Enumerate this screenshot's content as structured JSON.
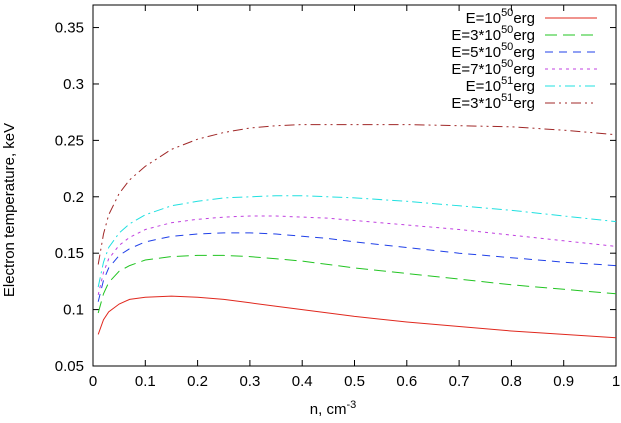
{
  "chart_data": {
    "type": "line",
    "title": "",
    "xlabel_base": "n, cm",
    "xlabel_exponent": "-3",
    "ylabel": "Electron temperature, keV",
    "xlim": [
      0,
      1
    ],
    "ylim": [
      0.05,
      0.37
    ],
    "x_ticks": [
      0,
      0.1,
      0.2,
      0.3,
      0.4,
      0.5,
      0.6,
      0.7,
      0.8,
      0.9,
      1
    ],
    "x_tick_labels": [
      "0",
      "0.1",
      "0.2",
      "0.3",
      "0.4",
      "0.5",
      "0.6",
      "0.7",
      "0.8",
      "0.9",
      "1"
    ],
    "y_ticks": [
      0.05,
      0.1,
      0.15,
      0.2,
      0.25,
      0.3,
      0.35
    ],
    "y_tick_labels": [
      "0.05",
      "0.1",
      "0.15",
      "0.2",
      "0.25",
      "0.3",
      "0.35"
    ],
    "grid": false,
    "legend_position": "top-right",
    "x": [
      0.01,
      0.02,
      0.03,
      0.05,
      0.07,
      0.1,
      0.15,
      0.2,
      0.25,
      0.3,
      0.35,
      0.4,
      0.45,
      0.5,
      0.6,
      0.7,
      0.8,
      0.9,
      1.0
    ],
    "series": [
      {
        "name_base": "E=10",
        "name_exponent": "50",
        "name_suffix": "erg",
        "color": "#e0281e",
        "dash": "solid",
        "values": [
          0.078,
          0.091,
          0.098,
          0.105,
          0.109,
          0.111,
          0.112,
          0.111,
          0.109,
          0.106,
          0.103,
          0.1,
          0.097,
          0.094,
          0.089,
          0.085,
          0.081,
          0.078,
          0.075
        ]
      },
      {
        "name_base": "E=3*10",
        "name_exponent": "50",
        "name_suffix": "erg",
        "color": "#22c422",
        "dash": "long-dash",
        "values": [
          0.097,
          0.114,
          0.124,
          0.134,
          0.139,
          0.144,
          0.147,
          0.148,
          0.148,
          0.147,
          0.145,
          0.143,
          0.14,
          0.137,
          0.132,
          0.127,
          0.122,
          0.118,
          0.114
        ]
      },
      {
        "name_base": "E=5*10",
        "name_exponent": "50",
        "name_suffix": "erg",
        "color": "#2040e8",
        "dash": "dash",
        "values": [
          0.107,
          0.126,
          0.137,
          0.148,
          0.154,
          0.16,
          0.165,
          0.167,
          0.168,
          0.168,
          0.167,
          0.165,
          0.163,
          0.16,
          0.155,
          0.15,
          0.146,
          0.142,
          0.139
        ]
      },
      {
        "name_base": "E=7*10",
        "name_exponent": "50",
        "name_suffix": "erg",
        "color": "#c040e0",
        "dash": "dot",
        "values": [
          0.113,
          0.133,
          0.145,
          0.157,
          0.164,
          0.171,
          0.177,
          0.18,
          0.182,
          0.183,
          0.183,
          0.182,
          0.181,
          0.179,
          0.175,
          0.171,
          0.166,
          0.161,
          0.156
        ]
      },
      {
        "name_base": "E=10",
        "name_exponent": "51",
        "name_suffix": "erg",
        "color": "#20e0e0",
        "dash": "dash-dot",
        "values": [
          0.12,
          0.142,
          0.155,
          0.168,
          0.176,
          0.184,
          0.192,
          0.196,
          0.199,
          0.2,
          0.201,
          0.201,
          0.2,
          0.199,
          0.196,
          0.192,
          0.188,
          0.183,
          0.178
        ]
      },
      {
        "name_base": "E=3*10",
        "name_exponent": "51",
        "name_suffix": "erg",
        "color": "#a02828",
        "dash": "dash-dot-dot",
        "values": [
          0.14,
          0.167,
          0.184,
          0.203,
          0.215,
          0.227,
          0.242,
          0.251,
          0.257,
          0.261,
          0.263,
          0.264,
          0.264,
          0.264,
          0.264,
          0.263,
          0.262,
          0.259,
          0.255
        ]
      }
    ]
  }
}
